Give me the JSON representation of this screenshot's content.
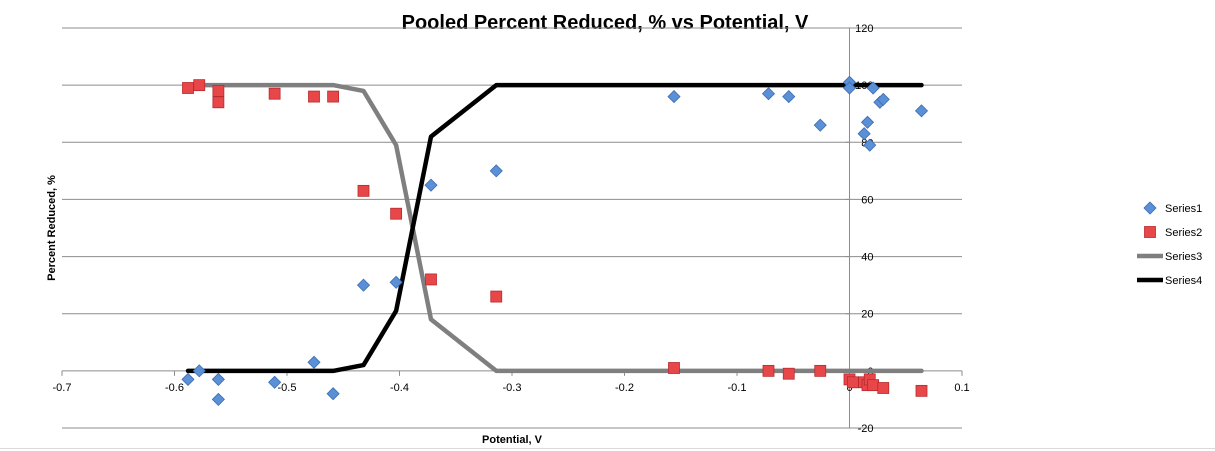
{
  "chart_data": {
    "type": "scatter",
    "title": "Pooled Percent Reduced, % vs Potential, V",
    "xlabel": "Potential, V",
    "ylabel": "Percent Reduced, %",
    "xlim": [
      -0.7,
      0.1
    ],
    "ylim": [
      -20,
      120
    ],
    "x_ticks": [
      -0.7,
      -0.6,
      -0.5,
      -0.4,
      -0.3,
      -0.2,
      -0.1,
      0,
      0.1
    ],
    "x_tick_labels": [
      "-0.7",
      "-0.6",
      "-0.5",
      "-0.4",
      "-0.3",
      "-0.2",
      "-0.1",
      "0",
      "0.1"
    ],
    "y_ticks": [
      -20,
      0,
      20,
      40,
      60,
      80,
      100,
      120
    ],
    "y_tick_labels": [
      "-20",
      "0",
      "20",
      "40",
      "60",
      "80",
      "100",
      "120"
    ],
    "y_axis_crosses_at_x": 0,
    "grid": "horizontal",
    "legend_position": "right",
    "series": [
      {
        "name": "Series1",
        "kind": "marker",
        "marker": "diamond",
        "color": "#5b8fd6",
        "points": [
          [
            -0.588,
            -3
          ],
          [
            -0.578,
            0
          ],
          [
            -0.561,
            -3
          ],
          [
            -0.561,
            -10
          ],
          [
            -0.511,
            -4
          ],
          [
            -0.476,
            3
          ],
          [
            -0.459,
            -8
          ],
          [
            -0.432,
            30
          ],
          [
            -0.403,
            31
          ],
          [
            -0.372,
            65
          ],
          [
            -0.314,
            70
          ],
          [
            -0.156,
            96
          ],
          [
            -0.072,
            97
          ],
          [
            -0.054,
            96
          ],
          [
            -0.026,
            86
          ],
          [
            0.0,
            101
          ],
          [
            0.0,
            99
          ],
          [
            0.013,
            83
          ],
          [
            0.016,
            87
          ],
          [
            0.018,
            79
          ],
          [
            0.021,
            99
          ],
          [
            0.027,
            94
          ],
          [
            0.03,
            95
          ],
          [
            0.064,
            91
          ]
        ]
      },
      {
        "name": "Series2",
        "kind": "marker",
        "marker": "square",
        "color": "#e8474a",
        "points": [
          [
            -0.588,
            99
          ],
          [
            -0.578,
            100
          ],
          [
            -0.561,
            98
          ],
          [
            -0.561,
            94
          ],
          [
            -0.511,
            97
          ],
          [
            -0.476,
            96
          ],
          [
            -0.459,
            96
          ],
          [
            -0.432,
            63
          ],
          [
            -0.403,
            55
          ],
          [
            -0.372,
            32
          ],
          [
            -0.314,
            26
          ],
          [
            -0.156,
            1
          ],
          [
            -0.072,
            0
          ],
          [
            -0.054,
            -1
          ],
          [
            -0.026,
            0
          ],
          [
            0.0,
            -3
          ],
          [
            0.003,
            -4
          ],
          [
            0.013,
            -4
          ],
          [
            0.016,
            -5
          ],
          [
            0.018,
            -3
          ],
          [
            0.021,
            -5
          ],
          [
            0.03,
            -6
          ],
          [
            0.064,
            -7
          ]
        ]
      },
      {
        "name": "Series3",
        "kind": "line",
        "color": "#7f7f7f",
        "points": [
          [
            -0.588,
            100
          ],
          [
            -0.459,
            100
          ],
          [
            -0.432,
            98
          ],
          [
            -0.403,
            79
          ],
          [
            -0.372,
            18
          ],
          [
            -0.314,
            0
          ],
          [
            0.064,
            0
          ]
        ]
      },
      {
        "name": "Series4",
        "kind": "line",
        "color": "#000000",
        "points": [
          [
            -0.588,
            0
          ],
          [
            -0.459,
            0
          ],
          [
            -0.432,
            2
          ],
          [
            -0.403,
            21
          ],
          [
            -0.372,
            82
          ],
          [
            -0.314,
            100
          ],
          [
            0.064,
            100
          ]
        ]
      }
    ]
  }
}
